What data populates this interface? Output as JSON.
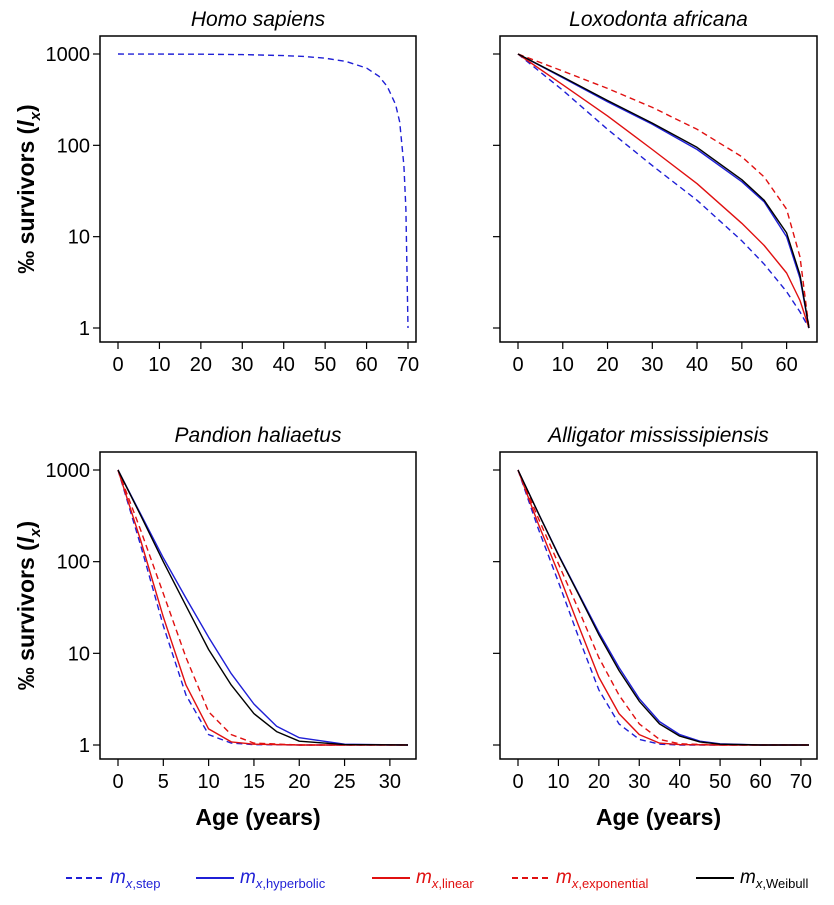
{
  "styles": {
    "step": {
      "color": "#1f1fd6",
      "dash": "6,4",
      "label": "m",
      "sub": "x,step"
    },
    "hyperbolic": {
      "color": "#1f1fd6",
      "dash": "",
      "label": "m",
      "sub": "x,hyperbolic"
    },
    "linear": {
      "color": "#e01010",
      "dash": "",
      "label": "m",
      "sub": "x,linear"
    },
    "exponential": {
      "color": "#e01010",
      "dash": "6,4",
      "label": "m",
      "sub": "x,exponential"
    },
    "weibull": {
      "color": "#000000",
      "dash": "",
      "label": "m",
      "sub": "x,Weibull"
    }
  },
  "legend_order": [
    "step",
    "hyperbolic",
    "linear",
    "exponential",
    "weibull"
  ],
  "ylabel": "‰ survivors (",
  "ylabel_var": "l",
  "ylabel_sub": "x",
  "xlabel": "Age (years)",
  "chart_data": [
    {
      "type": "line",
      "title": "Homo sapiens",
      "yscale": "log",
      "ylim": [
        1,
        1000
      ],
      "yticks": [
        1,
        10,
        100,
        1000
      ],
      "xlim": [
        0,
        70
      ],
      "xticks": [
        0,
        10,
        20,
        30,
        40,
        50,
        60,
        70
      ],
      "ylabel_shown": true,
      "xlabel_shown": false,
      "series": [
        {
          "style": "step",
          "x": [
            0,
            10,
            20,
            30,
            40,
            45,
            50,
            55,
            60,
            63,
            65,
            67,
            68,
            69,
            69.5,
            70
          ],
          "y": [
            1000,
            998,
            995,
            985,
            960,
            940,
            900,
            830,
            700,
            570,
            440,
            280,
            180,
            60,
            20,
            1
          ]
        }
      ]
    },
    {
      "type": "line",
      "title": "Loxodonta africana",
      "yscale": "log",
      "ylim": [
        1,
        1000
      ],
      "yticks": [
        1,
        10,
        100,
        1000
      ],
      "xlim": [
        0,
        65
      ],
      "xticks": [
        0,
        10,
        20,
        30,
        40,
        50,
        60
      ],
      "ylabel_shown": false,
      "xlabel_shown": false,
      "series": [
        {
          "style": "step",
          "x": [
            0,
            10,
            20,
            30,
            40,
            50,
            55,
            60,
            63,
            65
          ],
          "y": [
            1000,
            400,
            150,
            60,
            25,
            9,
            5,
            2.5,
            1.5,
            1
          ]
        },
        {
          "style": "hyperbolic",
          "x": [
            0,
            10,
            20,
            30,
            40,
            50,
            55,
            60,
            63,
            65
          ],
          "y": [
            1000,
            550,
            300,
            170,
            90,
            40,
            24,
            10,
            3.5,
            1
          ]
        },
        {
          "style": "linear",
          "x": [
            0,
            10,
            20,
            30,
            40,
            50,
            55,
            60,
            63,
            65
          ],
          "y": [
            1000,
            460,
            210,
            90,
            38,
            14,
            8,
            4,
            2,
            1
          ]
        },
        {
          "style": "exponential",
          "x": [
            0,
            10,
            20,
            30,
            40,
            50,
            55,
            60,
            63,
            65
          ],
          "y": [
            1000,
            650,
            420,
            260,
            150,
            75,
            45,
            20,
            6,
            1
          ]
        },
        {
          "style": "weibull",
          "x": [
            0,
            10,
            20,
            30,
            40,
            50,
            55,
            60,
            63,
            65
          ],
          "y": [
            1000,
            560,
            310,
            175,
            95,
            42,
            25,
            11,
            3.8,
            1
          ]
        }
      ]
    },
    {
      "type": "line",
      "title": "Pandion haliaetus",
      "yscale": "log",
      "ylim": [
        1,
        1000
      ],
      "yticks": [
        1,
        10,
        100,
        1000
      ],
      "xlim": [
        0,
        32
      ],
      "xticks": [
        0,
        5,
        10,
        15,
        20,
        25,
        30
      ],
      "ylabel_shown": true,
      "xlabel_shown": true,
      "series": [
        {
          "style": "step",
          "x": [
            0,
            2.5,
            5,
            7.5,
            10,
            12.5,
            15,
            20,
            25,
            32
          ],
          "y": [
            1000,
            150,
            20,
            3.5,
            1.3,
            1.05,
            1.01,
            1,
            1,
            1
          ]
        },
        {
          "style": "hyperbolic",
          "x": [
            0,
            2.5,
            5,
            7.5,
            10,
            12.5,
            15,
            17.5,
            20,
            25,
            32
          ],
          "y": [
            1000,
            330,
            110,
            40,
            15,
            6,
            2.8,
            1.6,
            1.2,
            1.02,
            1
          ]
        },
        {
          "style": "linear",
          "x": [
            0,
            2.5,
            5,
            7.5,
            10,
            12.5,
            15,
            20,
            25,
            32
          ],
          "y": [
            1000,
            170,
            25,
            4.5,
            1.5,
            1.08,
            1.02,
            1,
            1,
            1
          ]
        },
        {
          "style": "exponential",
          "x": [
            0,
            2.5,
            5,
            7.5,
            10,
            12.5,
            15,
            20,
            25,
            32
          ],
          "y": [
            1000,
            220,
            45,
            9,
            2.3,
            1.3,
            1.05,
            1,
            1,
            1
          ]
        },
        {
          "style": "weibull",
          "x": [
            0,
            2.5,
            5,
            7.5,
            10,
            12.5,
            15,
            17.5,
            20,
            25,
            32
          ],
          "y": [
            1000,
            320,
            100,
            33,
            11,
            4.5,
            2.2,
            1.4,
            1.1,
            1.01,
            1
          ]
        }
      ]
    },
    {
      "type": "line",
      "title": "Alligator mississipiensis",
      "yscale": "log",
      "ylim": [
        1,
        1000
      ],
      "yticks": [
        1,
        10,
        100,
        1000
      ],
      "xlim": [
        0,
        72
      ],
      "xticks": [
        0,
        10,
        20,
        30,
        40,
        50,
        60,
        70
      ],
      "ylabel_shown": false,
      "xlabel_shown": true,
      "series": [
        {
          "style": "step",
          "x": [
            0,
            5,
            10,
            15,
            20,
            25,
            30,
            35,
            40,
            50,
            60,
            72
          ],
          "y": [
            1000,
            230,
            60,
            15,
            4,
            1.7,
            1.15,
            1.02,
            1,
            1,
            1,
            1
          ]
        },
        {
          "style": "hyperbolic",
          "x": [
            0,
            5,
            10,
            15,
            20,
            25,
            30,
            35,
            40,
            45,
            50,
            60,
            72
          ],
          "y": [
            1000,
            340,
            120,
            45,
            17,
            7,
            3.2,
            1.8,
            1.3,
            1.1,
            1.03,
            1,
            1
          ]
        },
        {
          "style": "linear",
          "x": [
            0,
            5,
            10,
            15,
            20,
            25,
            30,
            35,
            40,
            50,
            60,
            72
          ],
          "y": [
            1000,
            260,
            75,
            20,
            5.5,
            2.2,
            1.3,
            1.05,
            1.01,
            1,
            1,
            1
          ]
        },
        {
          "style": "exponential",
          "x": [
            0,
            5,
            10,
            15,
            20,
            25,
            30,
            35,
            40,
            50,
            60,
            72
          ],
          "y": [
            1000,
            300,
            95,
            30,
            9,
            3.5,
            1.7,
            1.15,
            1.03,
            1,
            1,
            1
          ]
        },
        {
          "style": "weibull",
          "x": [
            0,
            5,
            10,
            15,
            20,
            25,
            30,
            35,
            40,
            45,
            50,
            60,
            72
          ],
          "y": [
            1000,
            340,
            118,
            44,
            16,
            6.5,
            3,
            1.7,
            1.25,
            1.08,
            1.02,
            1,
            1
          ]
        }
      ]
    }
  ]
}
